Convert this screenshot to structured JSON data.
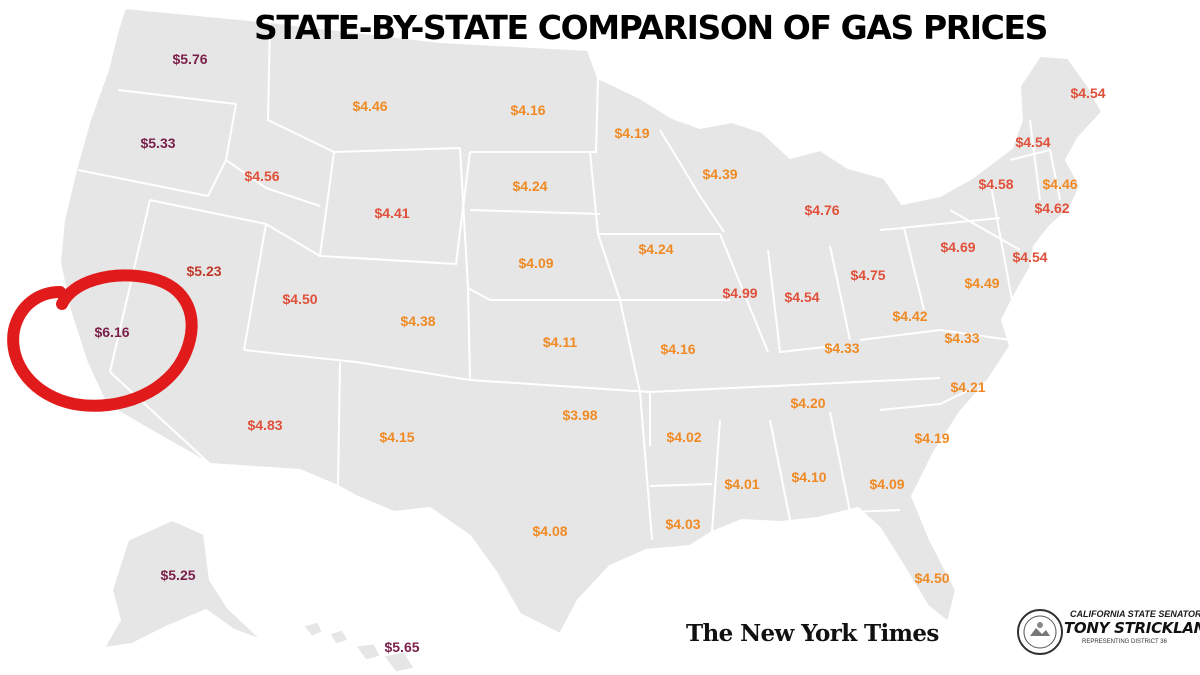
{
  "title": "STATE-BY-STATE COMPARISON OF GAS PRICES",
  "colors": {
    "land": "#e6e6e6",
    "border": "#ffffff",
    "price_high": "#7a1f4a",
    "price_mid_high": "#c0392b",
    "price_mid": "#e0503a",
    "price_low": "#f08a24",
    "highlight_circle": "#e11b1b"
  },
  "prices": [
    {
      "state": "Washington",
      "value": "$5.76",
      "tier": "high"
    },
    {
      "state": "Oregon",
      "value": "$5.33",
      "tier": "high"
    },
    {
      "state": "Nevada",
      "value": "$5.23",
      "tier": "mid_high"
    },
    {
      "state": "California",
      "value": "$6.16",
      "tier": "high",
      "highlighted": true
    },
    {
      "state": "Idaho",
      "value": "$4.56",
      "tier": "mid"
    },
    {
      "state": "Montana",
      "value": "$4.46",
      "tier": "low"
    },
    {
      "state": "Wyoming",
      "value": "$4.41",
      "tier": "mid"
    },
    {
      "state": "Utah",
      "value": "$4.50",
      "tier": "mid"
    },
    {
      "state": "Arizona",
      "value": "$4.83",
      "tier": "mid"
    },
    {
      "state": "Colorado",
      "value": "$4.38",
      "tier": "low"
    },
    {
      "state": "New Mexico",
      "value": "$4.15",
      "tier": "low"
    },
    {
      "state": "North Dakota",
      "value": "$4.16",
      "tier": "low"
    },
    {
      "state": "South Dakota",
      "value": "$4.24",
      "tier": "low"
    },
    {
      "state": "Nebraska",
      "value": "$4.09",
      "tier": "low"
    },
    {
      "state": "Kansas",
      "value": "$4.11",
      "tier": "low"
    },
    {
      "state": "Oklahoma",
      "value": "$3.98",
      "tier": "low"
    },
    {
      "state": "Texas",
      "value": "$4.08",
      "tier": "low"
    },
    {
      "state": "Minnesota",
      "value": "$4.19",
      "tier": "low"
    },
    {
      "state": "Iowa",
      "value": "$4.24",
      "tier": "low"
    },
    {
      "state": "Missouri",
      "value": "$4.16",
      "tier": "low"
    },
    {
      "state": "Arkansas",
      "value": "$4.02",
      "tier": "low"
    },
    {
      "state": "Louisiana",
      "value": "$4.03",
      "tier": "low"
    },
    {
      "state": "Wisconsin",
      "value": "$4.39",
      "tier": "low"
    },
    {
      "state": "Illinois",
      "value": "$4.99",
      "tier": "mid"
    },
    {
      "state": "Michigan",
      "value": "$4.76",
      "tier": "mid"
    },
    {
      "state": "Indiana",
      "value": "$4.54",
      "tier": "mid"
    },
    {
      "state": "Ohio",
      "value": "$4.75",
      "tier": "mid"
    },
    {
      "state": "Kentucky",
      "value": "$4.33",
      "tier": "low"
    },
    {
      "state": "Tennessee",
      "value": "$4.20",
      "tier": "low"
    },
    {
      "state": "Mississippi",
      "value": "$4.01",
      "tier": "low"
    },
    {
      "state": "Alabama",
      "value": "$4.10",
      "tier": "low"
    },
    {
      "state": "Georgia",
      "value": "$4.09",
      "tier": "low"
    },
    {
      "state": "Florida",
      "value": "$4.50",
      "tier": "low"
    },
    {
      "state": "South Carolina",
      "value": "$4.19",
      "tier": "low"
    },
    {
      "state": "North Carolina",
      "value": "$4.21",
      "tier": "low"
    },
    {
      "state": "Virginia",
      "value": "$4.33",
      "tier": "low"
    },
    {
      "state": "West Virginia",
      "value": "$4.42",
      "tier": "low"
    },
    {
      "state": "Pennsylvania",
      "value": "$4.69",
      "tier": "mid"
    },
    {
      "state": "New York",
      "value": "$4.54",
      "tier": "mid"
    },
    {
      "state": "Maine",
      "value": "$4.54",
      "tier": "mid"
    },
    {
      "state": "Vermont",
      "value": "$4.58",
      "tier": "mid"
    },
    {
      "state": "Massachusetts",
      "value": "$4.46",
      "tier": "low"
    },
    {
      "state": "Connecticut",
      "value": "$4.62",
      "tier": "mid"
    },
    {
      "state": "New Jersey",
      "value": "$4.54",
      "tier": "mid"
    },
    {
      "state": "Maryland",
      "value": "$4.49",
      "tier": "low"
    },
    {
      "state": "New Hampshire",
      "value": "$4.54",
      "tier": "mid"
    },
    {
      "state": "Alaska",
      "value": "$5.25",
      "tier": "high"
    },
    {
      "state": "Hawaii",
      "value": "$5.65",
      "tier": "high"
    }
  ],
  "source": "The New York Times",
  "senator": {
    "line1": "CALIFORNIA STATE SENATOR",
    "name": "TONY STRICKLAND",
    "district": "REPRESENTING DISTRICT 36"
  },
  "icons": {
    "seal": "california-senate-seal-icon",
    "highlight": "hand-drawn-circle"
  }
}
